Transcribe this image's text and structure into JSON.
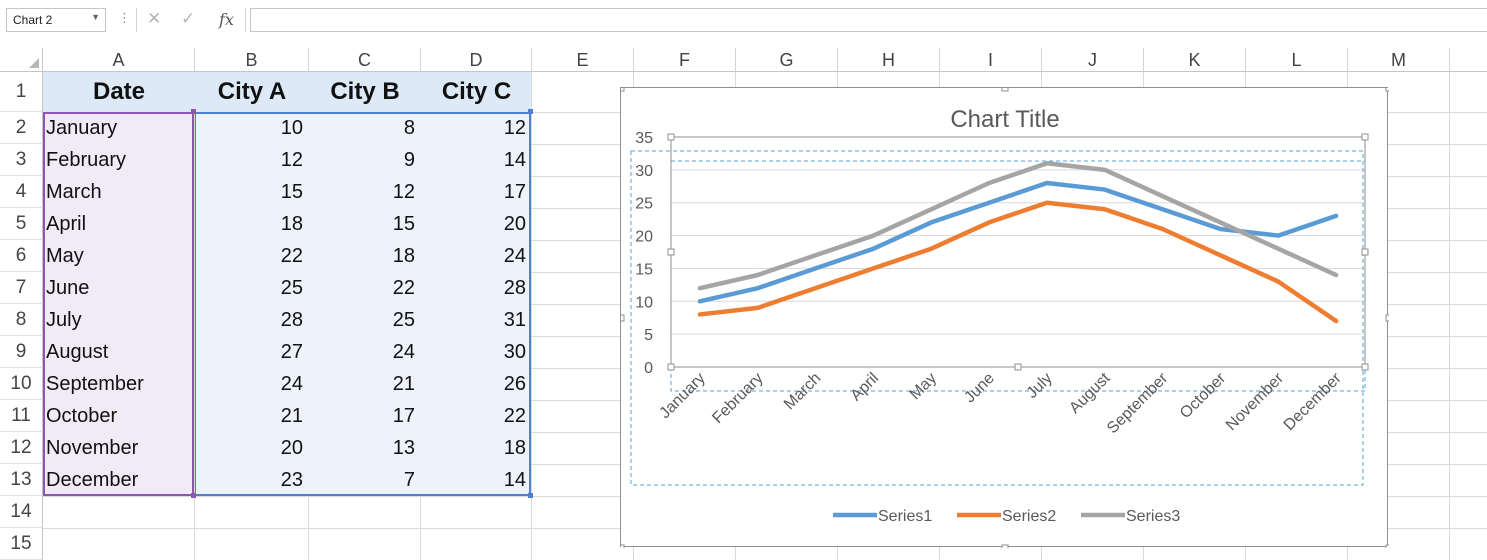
{
  "formula_bar": {
    "name_box": "Chart 2",
    "fx_label": "fx",
    "formula": ""
  },
  "columns": [
    "A",
    "B",
    "C",
    "D",
    "E",
    "F",
    "G",
    "H",
    "I",
    "J",
    "K",
    "L",
    "M"
  ],
  "rows": [
    "1",
    "2",
    "3",
    "4",
    "5",
    "6",
    "7",
    "8",
    "9",
    "10",
    "11",
    "12",
    "13",
    "14",
    "15"
  ],
  "table": {
    "headers": [
      "Date",
      "City A",
      "City B",
      "City C"
    ],
    "rows": [
      [
        "January",
        "10",
        "8",
        "12"
      ],
      [
        "February",
        "12",
        "9",
        "14"
      ],
      [
        "March",
        "15",
        "12",
        "17"
      ],
      [
        "April",
        "18",
        "15",
        "20"
      ],
      [
        "May",
        "22",
        "18",
        "24"
      ],
      [
        "June",
        "25",
        "22",
        "28"
      ],
      [
        "July",
        "28",
        "25",
        "31"
      ],
      [
        "August",
        "27",
        "24",
        "30"
      ],
      [
        "September",
        "24",
        "21",
        "26"
      ],
      [
        "October",
        "21",
        "17",
        "22"
      ],
      [
        "November",
        "20",
        "13",
        "18"
      ],
      [
        "December",
        "23",
        "7",
        "14"
      ]
    ]
  },
  "chart_data": {
    "type": "line",
    "title": "Chart Title",
    "categories": [
      "January",
      "February",
      "March",
      "April",
      "May",
      "June",
      "July",
      "August",
      "September",
      "October",
      "November",
      "December"
    ],
    "series": [
      {
        "name": "Series1",
        "color": "#5b9bd5",
        "values": [
          10,
          12,
          15,
          18,
          22,
          25,
          28,
          27,
          24,
          21,
          20,
          23
        ]
      },
      {
        "name": "Series2",
        "color": "#ed7d31",
        "values": [
          8,
          9,
          12,
          15,
          18,
          22,
          25,
          24,
          21,
          17,
          13,
          7
        ]
      },
      {
        "name": "Series3",
        "color": "#a5a5a5",
        "values": [
          12,
          14,
          17,
          20,
          24,
          28,
          31,
          30,
          26,
          22,
          18,
          14
        ]
      }
    ],
    "ylim": [
      0,
      35
    ],
    "yticks": [
      0,
      5,
      10,
      15,
      20,
      25,
      30,
      35
    ],
    "grid": true,
    "legend": "bottom"
  }
}
